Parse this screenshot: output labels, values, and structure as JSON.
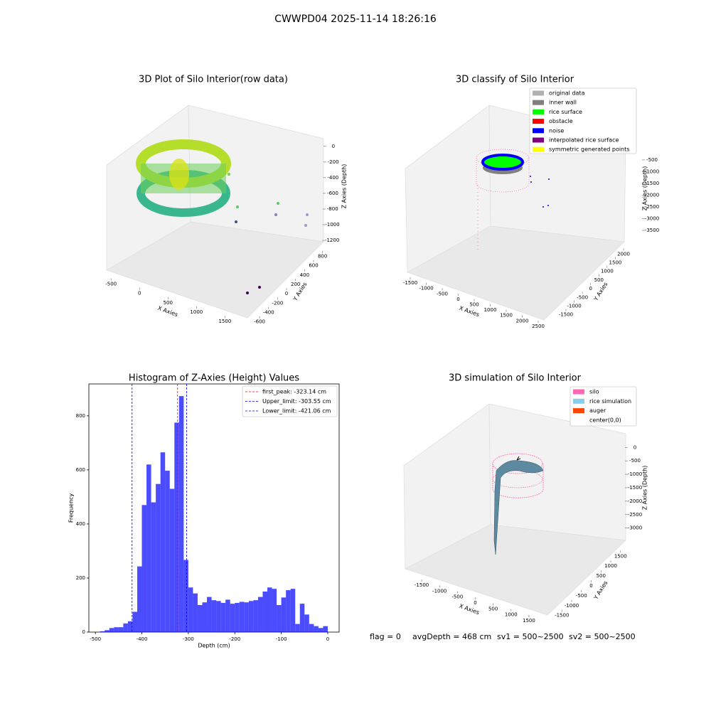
{
  "title": "CWWPD04 2025-11-14 18:26:16",
  "footer": [
    "flag = 0",
    "avgDepth = 468 cm",
    "sv1 = 500~2500",
    "sv2 = 500~2500"
  ],
  "chart_data": [
    {
      "type": "scatter3d",
      "title": "3D Plot of Silo Interior(row data)",
      "xlabel": "X Axies",
      "ylabel": "Y Axies",
      "zlabel": "Z Axies (Depth)",
      "xlim": [
        -590,
        1720
      ],
      "xticks": [
        -500,
        0,
        500,
        1000,
        1500
      ],
      "ylim": [
        -680,
        900
      ],
      "yticks": [
        -600,
        -400,
        -200,
        0,
        200,
        400,
        600,
        800
      ],
      "zlim": [
        -1290,
        80
      ],
      "zticks": [
        -1200,
        -1000,
        -800,
        -600,
        -400,
        -200,
        0
      ]
    },
    {
      "type": "scatter3d",
      "title": "3D classify of Silo Interior",
      "xlabel": "X Axies",
      "ylabel": "Y Axies",
      "zlabel": "Z Axies (Depth)",
      "xlim": [
        -1700,
        2700
      ],
      "xticks": [
        -1500,
        -1000,
        -500,
        0,
        500,
        1000,
        1500,
        2000,
        2500
      ],
      "ylim": [
        -1800,
        2300
      ],
      "yticks": [
        -1500,
        -1000,
        -500,
        0,
        500,
        1000,
        1500,
        2000
      ],
      "zlim": [
        -3800,
        -200
      ],
      "zticks": [
        -3500,
        -3000,
        -2500,
        -2000,
        -1500,
        -1000,
        -500
      ],
      "series": [
        {
          "name": "original data",
          "color": "#b0b0b0"
        },
        {
          "name": "inner wall",
          "color": "#808080"
        },
        {
          "name": "rice surface",
          "color": "#00ff00"
        },
        {
          "name": "obstacle",
          "color": "#ff0000"
        },
        {
          "name": "noise",
          "color": "#0000ff"
        },
        {
          "name": "interpolated rice surface",
          "color": "#800080"
        },
        {
          "name": "symmetric generated points",
          "color": "#ffff00"
        }
      ]
    },
    {
      "type": "histogram",
      "title": "Histogram of Z-Axies (Height) Values",
      "xlabel": "Depth (cm)",
      "ylabel": "Frequency",
      "color": "#0000ff",
      "bins": [
        -490,
        -480,
        -470,
        -460,
        -450,
        -440,
        -430,
        -420,
        -410,
        -400,
        -390,
        -380,
        -370,
        -360,
        -350,
        -340,
        -330,
        -320,
        -310,
        -300,
        -290,
        -280,
        -270,
        -260,
        -250,
        -240,
        -230,
        -220,
        -210,
        -200,
        -190,
        -180,
        -170,
        -160,
        -150,
        -140,
        -130,
        -120,
        -110,
        -100,
        -90,
        -80,
        -70,
        -60,
        -50,
        -40,
        -30,
        -20,
        -10,
        0
      ],
      "values": [
        3,
        7,
        15,
        18,
        18,
        32,
        40,
        75,
        243,
        470,
        620,
        480,
        548,
        665,
        597,
        530,
        775,
        873,
        267,
        165,
        143,
        100,
        110,
        130,
        118,
        115,
        108,
        120,
        105,
        108,
        112,
        110,
        115,
        118,
        130,
        150,
        165,
        160,
        100,
        128,
        155,
        160,
        30,
        105,
        65,
        30,
        22,
        15,
        22
      ],
      "xlim": [
        -514,
        24.5
      ],
      "xticks": [
        -500,
        -400,
        -300,
        -200,
        -100,
        0
      ],
      "ylim": [
        0,
        918
      ],
      "yticks": [
        0,
        200,
        400,
        600,
        800
      ],
      "vlines": [
        {
          "name": "first_peak: -323.14 cm",
          "value": -323.14,
          "color": "#ff0000"
        },
        {
          "name": "Upper_limit: -303.55 cm",
          "value": -303.55,
          "color": "#0000ff"
        },
        {
          "name": "Lower_limit: -421.06 cm",
          "value": -421.06,
          "color": "#0000ff"
        }
      ]
    },
    {
      "type": "surface3d",
      "title": "3D simulation of Silo Interior",
      "xlabel": "X Axies",
      "ylabel": "Y Axies",
      "zlabel": "Z Axies (Depth)",
      "xlim": [
        -1800,
        1800
      ],
      "xticks": [
        -1500,
        -1000,
        -500,
        0,
        500,
        1000,
        1500
      ],
      "ylim": [
        -1800,
        1800
      ],
      "yticks": [
        -1500,
        -1000,
        -500,
        0,
        500,
        1000,
        1500
      ],
      "zlim": [
        -3300,
        300
      ],
      "zticks": [
        -3000,
        -2500,
        -2000,
        -1500,
        -1000,
        -500,
        0
      ],
      "series": [
        {
          "name": "silo",
          "color": "#ff69b4"
        },
        {
          "name": "rice simulation",
          "color": "#87ceeb"
        },
        {
          "name": "auger",
          "color": "#ff4500"
        },
        {
          "name": "center(0,0)",
          "color": "#ffffff"
        }
      ]
    }
  ]
}
